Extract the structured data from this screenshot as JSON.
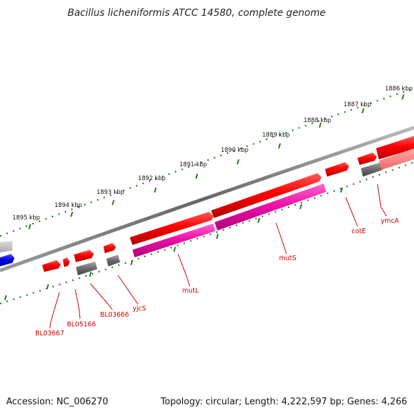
{
  "title": "Bacillus licheniformis ATCC 14580, complete genome",
  "footer": {
    "accession": "Accession: NC_006270",
    "summary": "Topology: circular; Length: 4,222,597 bp; Genes: 4,266"
  },
  "scale_labels": [
    "1886 kbp",
    "1887 kbp",
    "1888 kbp",
    "1889 kbp",
    "1890 kbp",
    "1891 kbp",
    "1892 kbp",
    "1893 kbp",
    "1894 kbp",
    "1895 kbp"
  ],
  "gene_labels": [
    "ymcA",
    "cotE",
    "mutS",
    "mutL",
    "yjcS",
    "BL03666",
    "BL05166",
    "BL03667"
  ],
  "colors": {
    "backbone": "#777777",
    "tick": "#1a7a1a",
    "forward_gene": "#ee0000",
    "reverse_cds": "#e0109a",
    "gray_feature": "#666666",
    "blue_feature": "#0000dd",
    "label": "#cc0000"
  }
}
